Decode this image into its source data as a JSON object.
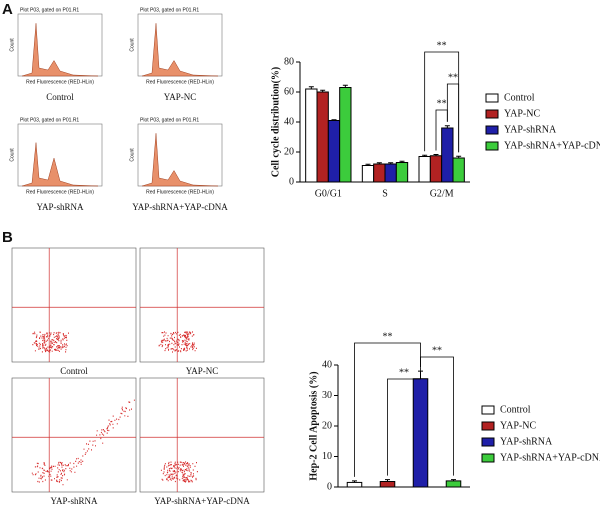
{
  "panels": {
    "A": {
      "label": "A",
      "x_axis": "Red Fluorescence (RED-HLin)",
      "y_axis": "Count",
      "histograms": [
        {
          "header": "Plot P03, gated on P01.R1",
          "caption": "Control"
        },
        {
          "header": "Plot P03, gated on P01.R1",
          "caption": "YAP-NC"
        },
        {
          "header": "Plot P03, gated on P01.R1",
          "caption": "YAP-shRNA"
        },
        {
          "header": "Plot P03, gated on P01.R1",
          "caption": "YAP-shRNA+YAP-cDNA"
        }
      ]
    },
    "B": {
      "label": "B",
      "scatter_captions": [
        "Control",
        "YAP-NC",
        "YAP-shRNA",
        "YAP-shRNA+YAP-cDNA"
      ]
    }
  },
  "chart_data": [
    {
      "type": "bar",
      "ylabel": "Cell cycle distribution(%)",
      "categories": [
        "G0/G1",
        "S",
        "G2/M"
      ],
      "ylim": [
        0,
        80
      ],
      "yticks": [
        0,
        20,
        40,
        60,
        80
      ],
      "series": [
        {
          "name": "Control",
          "color": "#ffffff",
          "values": [
            62,
            11,
            17
          ],
          "errors": [
            1.5,
            0.8,
            0.8
          ]
        },
        {
          "name": "YAP-NC",
          "color": "#b22222",
          "values": [
            60,
            12,
            17.5
          ],
          "errors": [
            1.2,
            0.8,
            0.8
          ]
        },
        {
          "name": "YAP-shRNA",
          "color": "#1f1fa8",
          "values": [
            41,
            12,
            36
          ],
          "errors": [
            0.5,
            0.8,
            1.5
          ]
        },
        {
          "name": "YAP-shRNA+YAP-cDNA",
          "color": "#3ccc3c",
          "values": [
            63,
            13,
            16
          ],
          "errors": [
            1.5,
            0.8,
            1.2
          ]
        }
      ],
      "annotations": [
        "**",
        "**",
        "**"
      ]
    },
    {
      "type": "bar",
      "ylabel": "Hep-2 Cell Apoptosis (%)",
      "categories": [
        null
      ],
      "ylim": [
        0,
        40
      ],
      "yticks": [
        0,
        10,
        20,
        30,
        40
      ],
      "series": [
        {
          "name": "Control",
          "color": "#ffffff",
          "values": [
            1.5
          ],
          "errors": [
            0.5
          ]
        },
        {
          "name": "YAP-NC",
          "color": "#b22222",
          "values": [
            1.8
          ],
          "errors": [
            0.6
          ]
        },
        {
          "name": "YAP-shRNA",
          "color": "#1f1fa8",
          "values": [
            35.5
          ],
          "errors": [
            2.5
          ]
        },
        {
          "name": "YAP-shRNA+YAP-cDNA",
          "color": "#3ccc3c",
          "values": [
            2
          ],
          "errors": [
            0.4
          ]
        }
      ],
      "annotations": [
        "**",
        "**",
        "**"
      ]
    }
  ]
}
